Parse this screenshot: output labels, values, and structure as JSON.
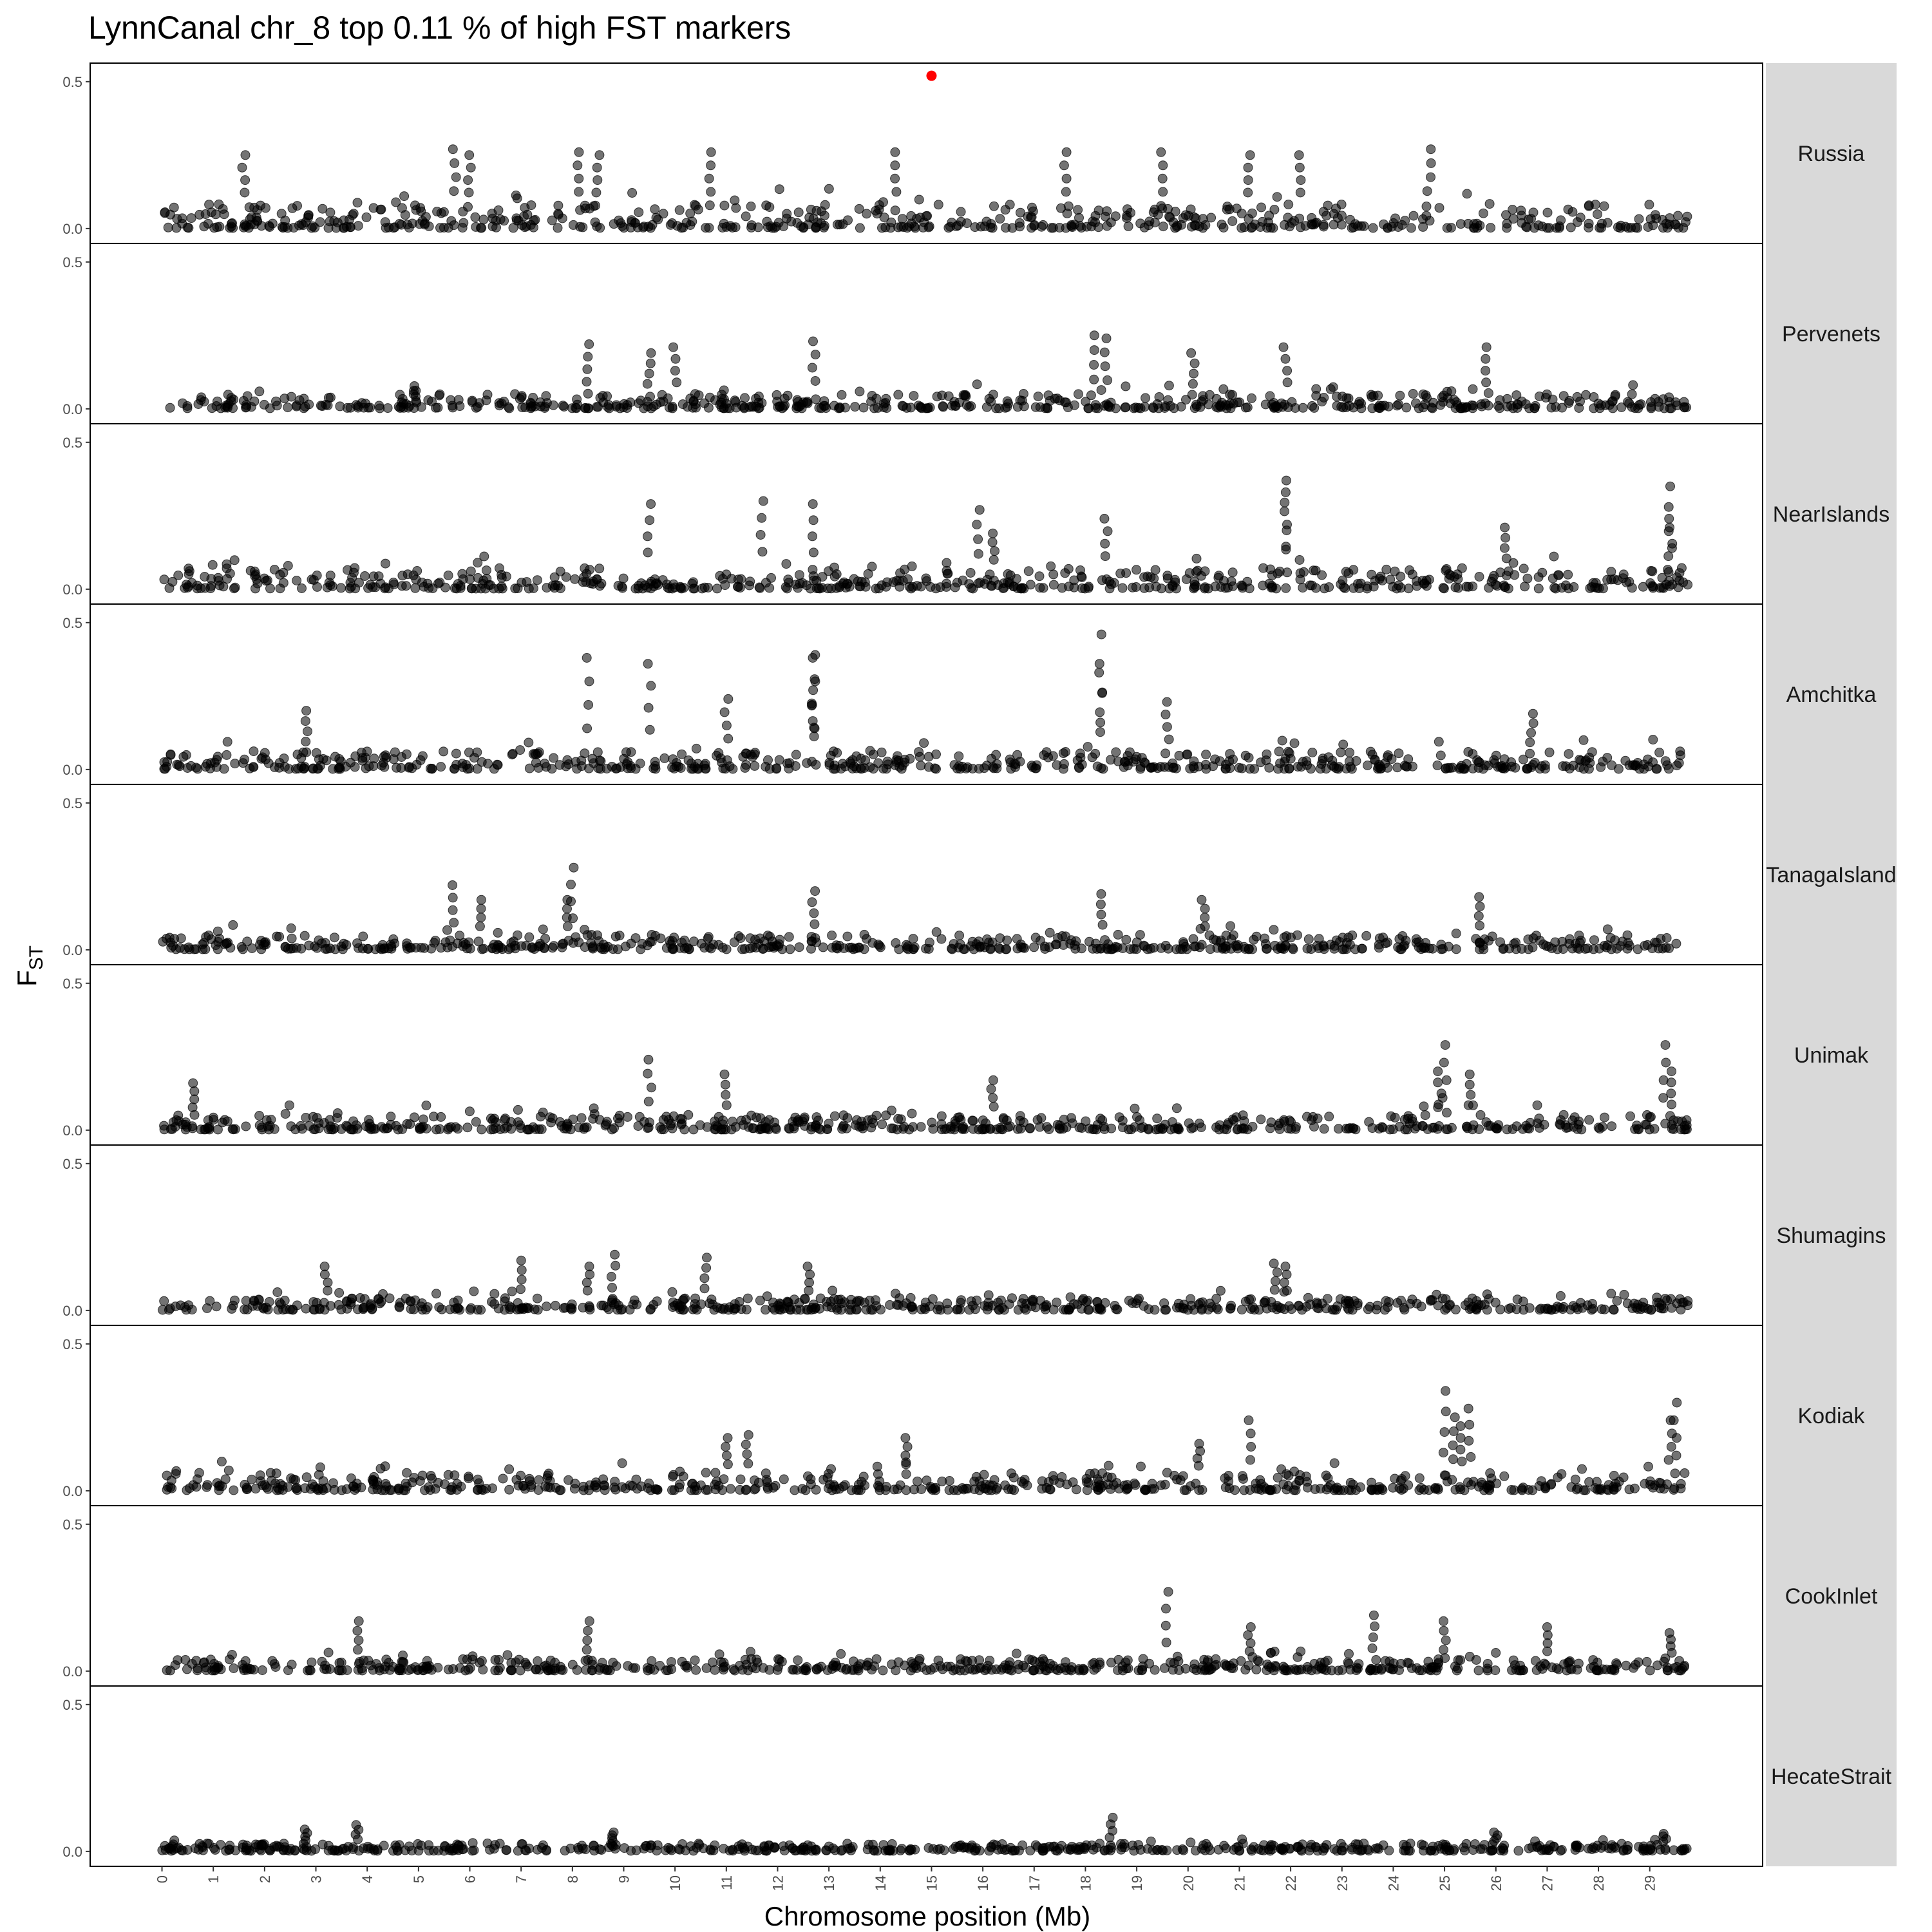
{
  "chart_data": {
    "type": "scatter",
    "title": "LynnCanal chr_8 top 0.11 % of high FST markers",
    "xlabel": "Chromosome position (Mb)",
    "ylabel": "F",
    "ylabel_subscript": "ST",
    "x_unit": "Mb",
    "xlim": [
      -1.4,
      31.2
    ],
    "ylim": [
      -0.02,
      0.55
    ],
    "x_ticks": [
      0,
      1,
      2,
      3,
      4,
      5,
      6,
      7,
      8,
      9,
      10,
      11,
      12,
      13,
      14,
      15,
      16,
      17,
      18,
      19,
      20,
      21,
      22,
      23,
      24,
      25,
      26,
      27,
      28,
      29
    ],
    "y_ticks": [
      {
        "value": 0.0,
        "label": "0.0"
      },
      {
        "value": 0.5,
        "label": "0.5"
      }
    ],
    "grid": false,
    "point_color": "#000000",
    "point_opacity": 0.55,
    "highlight_color": "#ff0000",
    "strip_color": "#d9d9d9",
    "panels": [
      {
        "name": "Russia",
        "background_level": 0.08,
        "highlight_points": [
          {
            "x": 15.0,
            "y": 0.52
          }
        ],
        "peaks": [
          {
            "x": 1.6,
            "y": 0.25
          },
          {
            "x": 5.7,
            "y": 0.27
          },
          {
            "x": 6.0,
            "y": 0.25
          },
          {
            "x": 8.1,
            "y": 0.26
          },
          {
            "x": 8.5,
            "y": 0.25
          },
          {
            "x": 10.7,
            "y": 0.26
          },
          {
            "x": 14.3,
            "y": 0.26
          },
          {
            "x": 17.6,
            "y": 0.26
          },
          {
            "x": 19.5,
            "y": 0.26
          },
          {
            "x": 24.7,
            "y": 0.27
          },
          {
            "x": 22.2,
            "y": 0.25
          },
          {
            "x": 21.2,
            "y": 0.25
          }
        ]
      },
      {
        "name": "Pervenets",
        "background_level": 0.05,
        "highlight_points": [],
        "peaks": [
          {
            "x": 8.3,
            "y": 0.22
          },
          {
            "x": 12.7,
            "y": 0.23
          },
          {
            "x": 9.5,
            "y": 0.19
          },
          {
            "x": 10.0,
            "y": 0.21
          },
          {
            "x": 18.2,
            "y": 0.25
          },
          {
            "x": 18.4,
            "y": 0.24
          },
          {
            "x": 21.9,
            "y": 0.21
          },
          {
            "x": 25.8,
            "y": 0.21
          },
          {
            "x": 20.1,
            "y": 0.19
          }
        ]
      },
      {
        "name": "NearIslands",
        "background_level": 0.07,
        "highlight_points": [],
        "peaks": [
          {
            "x": 9.5,
            "y": 0.29
          },
          {
            "x": 11.7,
            "y": 0.3
          },
          {
            "x": 12.7,
            "y": 0.29
          },
          {
            "x": 15.9,
            "y": 0.27
          },
          {
            "x": 18.4,
            "y": 0.24
          },
          {
            "x": 21.9,
            "y": 0.37
          },
          {
            "x": 21.9,
            "y": 0.33
          },
          {
            "x": 29.4,
            "y": 0.35
          },
          {
            "x": 29.4,
            "y": 0.24
          },
          {
            "x": 26.2,
            "y": 0.21
          },
          {
            "x": 16.2,
            "y": 0.19
          }
        ]
      },
      {
        "name": "Amchitka",
        "background_level": 0.06,
        "highlight_points": [],
        "peaks": [
          {
            "x": 8.3,
            "y": 0.38
          },
          {
            "x": 9.5,
            "y": 0.36
          },
          {
            "x": 12.7,
            "y": 0.39
          },
          {
            "x": 12.7,
            "y": 0.38
          },
          {
            "x": 12.7,
            "y": 0.27
          },
          {
            "x": 18.3,
            "y": 0.46
          },
          {
            "x": 18.3,
            "y": 0.33
          },
          {
            "x": 11.0,
            "y": 0.24
          },
          {
            "x": 19.6,
            "y": 0.23
          },
          {
            "x": 2.8,
            "y": 0.2
          },
          {
            "x": 26.7,
            "y": 0.19
          }
        ]
      },
      {
        "name": "TanagaIsland",
        "background_level": 0.05,
        "highlight_points": [],
        "peaks": [
          {
            "x": 8.0,
            "y": 0.28
          },
          {
            "x": 5.7,
            "y": 0.22
          },
          {
            "x": 6.2,
            "y": 0.17
          },
          {
            "x": 7.9,
            "y": 0.17
          },
          {
            "x": 12.7,
            "y": 0.2
          },
          {
            "x": 18.3,
            "y": 0.19
          },
          {
            "x": 25.7,
            "y": 0.18
          },
          {
            "x": 20.3,
            "y": 0.17
          }
        ]
      },
      {
        "name": "Unimak",
        "background_level": 0.05,
        "highlight_points": [],
        "peaks": [
          {
            "x": 9.5,
            "y": 0.24
          },
          {
            "x": 11.0,
            "y": 0.19
          },
          {
            "x": 25.0,
            "y": 0.29
          },
          {
            "x": 24.9,
            "y": 0.2
          },
          {
            "x": 25.5,
            "y": 0.19
          },
          {
            "x": 29.3,
            "y": 0.29
          },
          {
            "x": 29.4,
            "y": 0.2
          },
          {
            "x": 16.2,
            "y": 0.17
          },
          {
            "x": 0.6,
            "y": 0.16
          }
        ]
      },
      {
        "name": "Shumagins",
        "background_level": 0.04,
        "highlight_points": [],
        "peaks": [
          {
            "x": 7.0,
            "y": 0.17
          },
          {
            "x": 8.8,
            "y": 0.19
          },
          {
            "x": 10.6,
            "y": 0.18
          },
          {
            "x": 8.3,
            "y": 0.15
          },
          {
            "x": 21.9,
            "y": 0.15
          },
          {
            "x": 21.7,
            "y": 0.16
          },
          {
            "x": 3.2,
            "y": 0.15
          },
          {
            "x": 12.6,
            "y": 0.15
          }
        ]
      },
      {
        "name": "Kodiak",
        "background_level": 0.06,
        "highlight_points": [],
        "peaks": [
          {
            "x": 25.0,
            "y": 0.34
          },
          {
            "x": 25.2,
            "y": 0.25
          },
          {
            "x": 25.5,
            "y": 0.28
          },
          {
            "x": 25.3,
            "y": 0.22
          },
          {
            "x": 29.5,
            "y": 0.3
          },
          {
            "x": 29.4,
            "y": 0.24
          },
          {
            "x": 21.2,
            "y": 0.24
          },
          {
            "x": 11.4,
            "y": 0.19
          },
          {
            "x": 14.5,
            "y": 0.18
          },
          {
            "x": 11.0,
            "y": 0.18
          },
          {
            "x": 20.2,
            "y": 0.16
          }
        ]
      },
      {
        "name": "CookInlet",
        "background_level": 0.04,
        "highlight_points": [],
        "peaks": [
          {
            "x": 19.6,
            "y": 0.27
          },
          {
            "x": 3.8,
            "y": 0.17
          },
          {
            "x": 8.3,
            "y": 0.17
          },
          {
            "x": 23.6,
            "y": 0.19
          },
          {
            "x": 25.0,
            "y": 0.17
          },
          {
            "x": 21.2,
            "y": 0.15
          },
          {
            "x": 27.0,
            "y": 0.15
          },
          {
            "x": 29.4,
            "y": 0.13
          }
        ]
      },
      {
        "name": "HecateStrait",
        "background_level": 0.025,
        "highlight_points": [],
        "peaks": [
          {
            "x": 2.8,
            "y": 0.075
          },
          {
            "x": 3.8,
            "y": 0.09
          },
          {
            "x": 18.5,
            "y": 0.115
          },
          {
            "x": 8.8,
            "y": 0.065
          },
          {
            "x": 26.0,
            "y": 0.065
          },
          {
            "x": 29.3,
            "y": 0.06
          }
        ]
      }
    ]
  }
}
